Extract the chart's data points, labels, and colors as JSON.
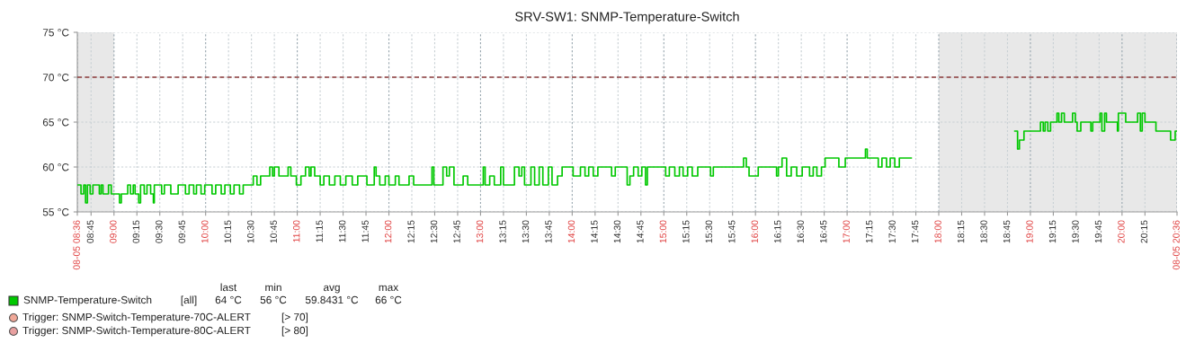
{
  "chart_data": {
    "type": "step",
    "title": "SRV-SW1: SNMP-Temperature-Switch",
    "xlim": [
      8.6,
      20.6
    ],
    "xticks": [
      {
        "value": 8.6,
        "label": "08-05 08:36"
      },
      {
        "value": 8.75,
        "label": "08:45"
      },
      {
        "value": 9,
        "label": "09:00"
      },
      {
        "value": 9.25,
        "label": "09:15"
      },
      {
        "value": 9.5,
        "label": "09:30"
      },
      {
        "value": 9.75,
        "label": "09:45"
      },
      {
        "value": 10,
        "label": "10:00"
      },
      {
        "value": 10.25,
        "label": "10:15"
      },
      {
        "value": 10.5,
        "label": "10:30"
      },
      {
        "value": 10.75,
        "label": "10:45"
      },
      {
        "value": 11,
        "label": "11:00"
      },
      {
        "value": 11.25,
        "label": "11:15"
      },
      {
        "value": 11.5,
        "label": "11:30"
      },
      {
        "value": 11.75,
        "label": "11:45"
      },
      {
        "value": 12,
        "label": "12:00"
      },
      {
        "value": 12.25,
        "label": "12:15"
      },
      {
        "value": 12.5,
        "label": "12:30"
      },
      {
        "value": 12.75,
        "label": "12:45"
      },
      {
        "value": 13,
        "label": "13:00"
      },
      {
        "value": 13.25,
        "label": "13:15"
      },
      {
        "value": 13.5,
        "label": "13:30"
      },
      {
        "value": 13.75,
        "label": "13:45"
      },
      {
        "value": 14,
        "label": "14:00"
      },
      {
        "value": 14.25,
        "label": "14:15"
      },
      {
        "value": 14.5,
        "label": "14:30"
      },
      {
        "value": 14.75,
        "label": "14:45"
      },
      {
        "value": 15,
        "label": "15:00"
      },
      {
        "value": 15.25,
        "label": "15:15"
      },
      {
        "value": 15.5,
        "label": "15:30"
      },
      {
        "value": 15.75,
        "label": "15:45"
      },
      {
        "value": 16,
        "label": "16:00"
      },
      {
        "value": 16.25,
        "label": "16:15"
      },
      {
        "value": 16.5,
        "label": "16:30"
      },
      {
        "value": 16.75,
        "label": "16:45"
      },
      {
        "value": 17,
        "label": "17:00"
      },
      {
        "value": 17.25,
        "label": "17:15"
      },
      {
        "value": 17.5,
        "label": "17:30"
      },
      {
        "value": 17.75,
        "label": "17:45"
      },
      {
        "value": 18,
        "label": "18:00"
      },
      {
        "value": 18.25,
        "label": "18:15"
      },
      {
        "value": 18.5,
        "label": "18:30"
      },
      {
        "value": 18.75,
        "label": "18:45"
      },
      {
        "value": 19,
        "label": "19:00"
      },
      {
        "value": 19.25,
        "label": "19:15"
      },
      {
        "value": 19.5,
        "label": "19:30"
      },
      {
        "value": 19.75,
        "label": "19:45"
      },
      {
        "value": 20,
        "label": "20:00"
      },
      {
        "value": 20.25,
        "label": "20:15"
      },
      {
        "value": 20.6,
        "label": "08-05 20:36"
      }
    ],
    "ylim": [
      55,
      75
    ],
    "yticks": [
      {
        "value": 55,
        "label": "55 °C"
      },
      {
        "value": 60,
        "label": "60 °C"
      },
      {
        "value": 65,
        "label": "65 °C"
      },
      {
        "value": 70,
        "label": "70 °C"
      },
      {
        "value": 75,
        "label": "75 °C"
      }
    ],
    "grid": true,
    "legend": "bottom left",
    "bands": [
      {
        "axis": "x",
        "from": 8.6,
        "to": 9,
        "color": "#e8e8e8"
      },
      {
        "axis": "x",
        "from": 18,
        "to": 20.6,
        "color": "#e8e8e8"
      }
    ],
    "ref_lines": [
      {
        "axis": "y",
        "value": 70,
        "color": "#8b3a3a",
        "line_style": "dashed"
      }
    ],
    "annotations": [
      "[all]",
      "last",
      "min",
      "avg",
      "max",
      "64 °C",
      "56 °C",
      "59.8431 °C",
      "66 °C",
      "Trigger: SNMP-Switch-Temperature-70C-ALERT",
      "[> 70]",
      "Trigger: SNMP-Switch-Temperature-80C-ALERT",
      "[> 80]"
    ],
    "series": [
      {
        "name": "SNMP-Temperature-Switch",
        "color": "#00c800",
        "x": [
          8.6,
          8.64,
          8.67,
          8.69,
          8.71,
          8.74,
          8.77,
          8.84,
          8.86,
          8.88,
          8.94,
          8.97,
          9.06,
          9.08,
          9.15,
          9.18,
          9.21,
          9.23,
          9.27,
          9.29,
          9.33,
          9.36,
          9.4,
          9.43,
          9.44,
          9.52,
          9.55,
          9.62,
          9.7,
          9.78,
          9.82,
          9.87,
          9.9,
          9.95,
          9.99,
          10.07,
          10.11,
          10.17,
          10.21,
          10.27,
          10.31,
          10.37,
          10.41,
          10.52,
          10.56,
          10.6,
          10.7,
          10.73,
          10.75,
          10.8,
          10.9,
          10.93,
          10.99,
          11.04,
          11.09,
          11.13,
          11.15,
          11.19,
          11.25,
          11.29,
          11.35,
          11.41,
          11.47,
          11.53,
          11.6,
          11.66,
          11.72,
          11.76,
          11.84,
          11.86,
          11.9,
          11.96,
          12.0,
          12.07,
          12.11,
          12.22,
          12.27,
          12.47,
          12.49,
          12.59,
          12.63,
          12.66,
          12.71,
          12.81,
          12.86,
          13.03,
          13.05,
          13.1,
          13.15,
          13.22,
          13.25,
          13.37,
          13.42,
          13.45,
          13.48,
          13.55,
          13.59,
          13.64,
          13.68,
          13.74,
          13.78,
          13.84,
          13.89,
          14.01,
          14.09,
          14.14,
          14.18,
          14.23,
          14.28,
          14.43,
          14.47,
          14.6,
          14.63,
          14.67,
          14.72,
          14.76,
          14.8,
          14.82,
          15.02,
          15.06,
          15.12,
          15.17,
          15.21,
          15.26,
          15.31,
          15.37,
          15.51,
          15.54,
          15.75,
          15.87,
          15.9,
          15.93,
          16.03,
          16.23,
          16.25,
          16.29,
          16.34,
          16.39,
          16.45,
          16.51,
          16.59,
          16.63,
          16.67,
          16.72,
          16.76,
          16.91,
          16.98,
          17.2,
          17.22,
          17.34,
          17.38,
          17.43,
          17.47,
          17.52,
          17.57,
          17.64,
          17.7,
          18.83,
          18.86,
          18.88,
          18.93,
          19.11,
          19.14,
          19.16,
          19.19,
          19.22,
          19.29,
          19.31,
          19.34,
          19.37,
          19.46,
          19.49,
          19.51,
          19.55,
          19.66,
          19.68,
          19.76,
          19.78,
          19.81,
          19.83,
          19.95,
          19.96,
          20.04,
          20.17,
          20.2,
          20.22,
          20.25,
          20.37,
          20.53,
          20.58,
          20.6
        ],
        "values": [
          58,
          57,
          58,
          56,
          58,
          57,
          58,
          57,
          58,
          57,
          58,
          57,
          56,
          57,
          58,
          57,
          58,
          57,
          56,
          58,
          57,
          58,
          57,
          56,
          58,
          57,
          58,
          57,
          58,
          57,
          58,
          57,
          58,
          57,
          58,
          57,
          58,
          57,
          58,
          57,
          58,
          57,
          58,
          59,
          58,
          59,
          60,
          59,
          60,
          59,
          60,
          59,
          58,
          59,
          60,
          59,
          60,
          59,
          58,
          59,
          58,
          59,
          58,
          59,
          58,
          59,
          59,
          58,
          60,
          59,
          58,
          59,
          58,
          59,
          58,
          59,
          58,
          60,
          58,
          60,
          59,
          60,
          58,
          59,
          58,
          60,
          58,
          59,
          58,
          60,
          58,
          60,
          59,
          60,
          58,
          60,
          58,
          60,
          58,
          60,
          58,
          59,
          60,
          59,
          60,
          59,
          60,
          59,
          60,
          59,
          60,
          58,
          59,
          60,
          59,
          60,
          58,
          60,
          59,
          60,
          59,
          60,
          59,
          60,
          59,
          60,
          59,
          60,
          60,
          61,
          60,
          59,
          60,
          59,
          60,
          61,
          59,
          60,
          59,
          60,
          59,
          60,
          59,
          60,
          61,
          60,
          61,
          62,
          61,
          60,
          61,
          60,
          61,
          60,
          61,
          61,
          null,
          64,
          62,
          63,
          64,
          65,
          64,
          65,
          64,
          65,
          66,
          65,
          66,
          65,
          66,
          65,
          64,
          65,
          64,
          65,
          66,
          64,
          66,
          65,
          64,
          66,
          65,
          66,
          64,
          66,
          65,
          64,
          63,
          64,
          64
        ]
      }
    ]
  }
}
